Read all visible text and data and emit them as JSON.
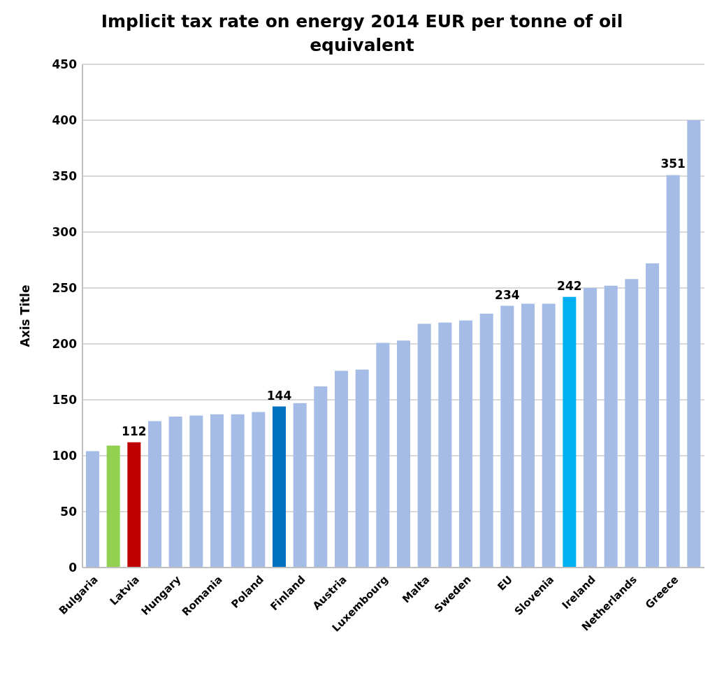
{
  "chart_data": {
    "type": "bar",
    "title": "Implicit tax rate on energy 2014 EUR per tonne of oil equivalent",
    "ylabel": "Axis Title",
    "categories": [
      "Bulgaria",
      null,
      "Latvia",
      null,
      "Hungary",
      null,
      "Romania",
      null,
      "Poland",
      null,
      "Finland",
      null,
      "Austria",
      null,
      "Luxembourg",
      null,
      "Malta",
      null,
      "Sweden",
      null,
      "EU",
      null,
      "Slovenia",
      null,
      "Ireland",
      null,
      "Netherlands",
      null,
      "Greece",
      null
    ],
    "values": [
      104,
      109,
      112,
      131,
      135,
      136,
      137,
      137,
      139,
      144,
      147,
      162,
      176,
      177,
      201,
      203,
      218,
      219,
      221,
      227,
      234,
      236,
      236,
      242,
      250,
      252,
      258,
      272,
      351,
      400
    ],
    "colors": [
      "#a4bce6",
      "#92d050",
      "#c00000",
      "#a4bce6",
      "#a4bce6",
      "#a4bce6",
      "#a4bce6",
      "#a4bce6",
      "#a4bce6",
      "#0070c0",
      "#a4bce6",
      "#a4bce6",
      "#a4bce6",
      "#a4bce6",
      "#a4bce6",
      "#a4bce6",
      "#a4bce6",
      "#a4bce6",
      "#a4bce6",
      "#a4bce6",
      "#a4bce6",
      "#a4bce6",
      "#a4bce6",
      "#00b0f0",
      "#a4bce6",
      "#a4bce6",
      "#a4bce6",
      "#a4bce6",
      "#a4bce6",
      "#a4bce6"
    ],
    "value_labels": [
      null,
      null,
      "112",
      null,
      null,
      null,
      null,
      null,
      null,
      "144",
      null,
      null,
      null,
      null,
      null,
      null,
      null,
      null,
      null,
      null,
      "234",
      null,
      null,
      "242",
      null,
      null,
      null,
      null,
      "351",
      null
    ],
    "ylim": [
      0,
      450
    ],
    "yticks": [
      0,
      50,
      100,
      150,
      200,
      250,
      300,
      350,
      400,
      450
    ],
    "grid": "y"
  }
}
